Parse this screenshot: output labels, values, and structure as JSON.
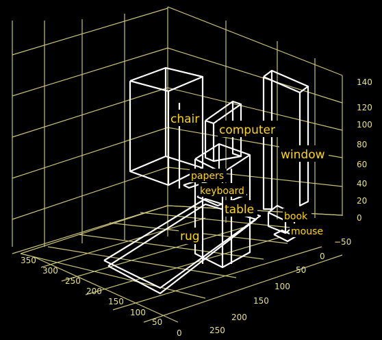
{
  "object_labels": [
    {
      "key": "chair",
      "text": "chair"
    },
    {
      "key": "computer",
      "text": "computer"
    },
    {
      "key": "window",
      "text": "window"
    },
    {
      "key": "papers",
      "text": "papers"
    },
    {
      "key": "keyboard",
      "text": "keyboard"
    },
    {
      "key": "table",
      "text": "table"
    },
    {
      "key": "book",
      "text": "book"
    },
    {
      "key": "mouse",
      "text": "mouse"
    },
    {
      "key": "rug",
      "text": "rug"
    }
  ],
  "axis_ticks": {
    "left": [
      "350",
      "300",
      "250",
      "200",
      "150",
      "100",
      "50",
      "0"
    ],
    "bottom_right": [
      "250",
      "200",
      "150",
      "100",
      "50",
      "0",
      "−50"
    ],
    "vertical": [
      "140",
      "120",
      "100",
      "80",
      "60",
      "40",
      "20",
      "0"
    ]
  },
  "colors": {
    "background": "#000000",
    "grid": "#c8c27a",
    "boxes": "#ffffff",
    "labels": "#ffd700",
    "ticks": "#e6e08a"
  }
}
